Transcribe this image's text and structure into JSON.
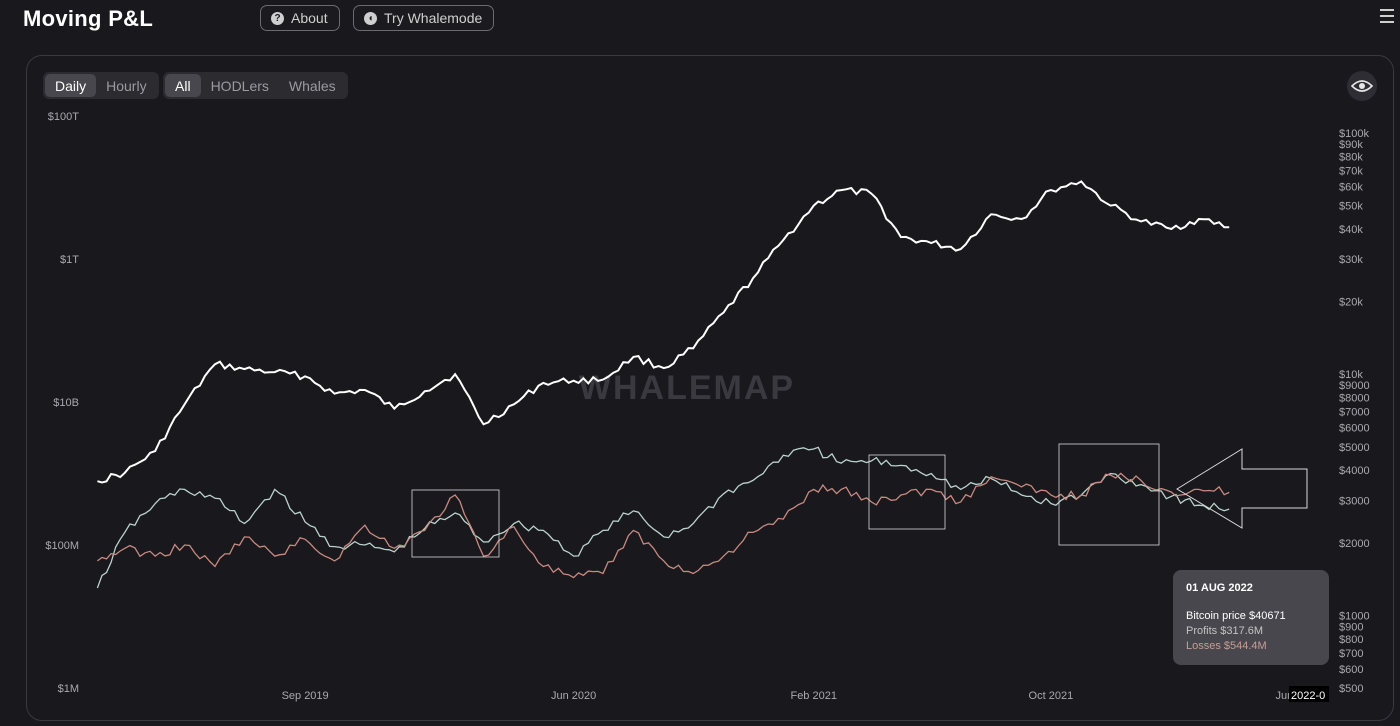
{
  "app": {
    "title": "Moving P&L"
  },
  "header": {
    "about_label": "About",
    "whalemode_label": "Try Whalemode",
    "about_icon": "question-circle-icon",
    "whalemode_icon": "whale-icon",
    "menu_icon": "hamburger-menu-icon"
  },
  "controls": {
    "interval": {
      "options": [
        "Daily",
        "Hourly"
      ],
      "selected": "Daily"
    },
    "cohort": {
      "options": [
        "All",
        "HODLers",
        "Whales"
      ],
      "selected": "All"
    },
    "eye_icon": "eye-icon"
  },
  "watermark": "WHALEMAP",
  "tooltip": {
    "date": "01 AUG 2022",
    "price": "Bitcoin price $40671",
    "profits": "Profits $317.6M",
    "losses": "Losses $544.4M"
  },
  "colors": {
    "price_line": "#ffffff",
    "profits_line": "#b9d3cc",
    "losses_line": "#c88a80",
    "annotation": "#d9d9d9",
    "background": "#19181d"
  },
  "chart_data": {
    "type": "line",
    "left_axis": {
      "scale": "log",
      "ticks": [
        "$100T",
        "$1T",
        "$10B",
        "$100M",
        "$1M"
      ]
    },
    "right_axis": {
      "scale": "log",
      "ticks": [
        "$100k",
        "$90k",
        "$80k",
        "$70k",
        "$60k",
        "$50k",
        "$40k",
        "$30k",
        "$20k",
        "$10k",
        "$9000",
        "$8000",
        "$7000",
        "$6000",
        "$5000",
        "$4000",
        "$3000",
        "$2000",
        "$1000",
        "$900",
        "$800",
        "$700",
        "$600",
        "$500"
      ]
    },
    "x_ticks": [
      "Sep 2019",
      "Jun 2020",
      "Feb 2021",
      "Oct 2021",
      "Jun 2",
      "2022-0"
    ],
    "series": [
      {
        "key": "price",
        "axis": "right",
        "x": [
          "2019-02",
          "2019-03",
          "2019-04",
          "2019-05",
          "2019-06",
          "2019-07",
          "2019-08",
          "2019-09",
          "2019-10",
          "2019-11",
          "2019-12",
          "2020-01",
          "2020-02",
          "2020-03",
          "2020-04",
          "2020-05",
          "2020-06",
          "2020-07",
          "2020-08",
          "2020-09",
          "2020-10",
          "2020-11",
          "2020-12",
          "2021-01",
          "2021-02",
          "2021-03",
          "2021-04",
          "2021-05",
          "2021-06",
          "2021-07",
          "2021-08",
          "2021-09",
          "2021-10",
          "2021-11",
          "2021-12",
          "2022-01",
          "2022-02",
          "2022-03",
          "2022-04"
        ],
        "values": [
          3600,
          3900,
          4800,
          7500,
          11000,
          10500,
          10200,
          9800,
          8300,
          8600,
          7200,
          8500,
          10000,
          6200,
          7500,
          9200,
          9400,
          9500,
          11800,
          10600,
          12800,
          18000,
          25000,
          36000,
          50000,
          58000,
          56000,
          37000,
          35000,
          33000,
          46000,
          44000,
          58000,
          63000,
          50000,
          43000,
          40000,
          44000,
          40671
        ]
      },
      {
        "key": "profits",
        "axis": "left",
        "name": "Profits",
        "x": [
          "2019-02",
          "2019-03",
          "2019-04",
          "2019-05",
          "2019-06",
          "2019-07",
          "2019-08",
          "2019-09",
          "2019-10",
          "2019-11",
          "2019-12",
          "2020-01",
          "2020-02",
          "2020-03",
          "2020-04",
          "2020-05",
          "2020-06",
          "2020-07",
          "2020-08",
          "2020-09",
          "2020-10",
          "2020-11",
          "2020-12",
          "2021-01",
          "2021-02",
          "2021-03",
          "2021-04",
          "2021-05",
          "2021-06",
          "2021-07",
          "2021-08",
          "2021-09",
          "2021-10",
          "2021-11",
          "2021-12",
          "2022-01",
          "2022-02",
          "2022-03",
          "2022-04"
        ],
        "values": [
          25,
          150,
          380,
          600,
          450,
          200,
          600,
          210,
          95,
          100,
          80,
          170,
          280,
          110,
          200,
          160,
          70,
          160,
          300,
          130,
          200,
          520,
          800,
          1800,
          2200,
          1400,
          1500,
          1300,
          1000,
          600,
          850,
          500,
          380,
          500,
          1000,
          700,
          480,
          360,
          317.6
        ]
      },
      {
        "key": "losses",
        "axis": "left",
        "name": "Losses",
        "x": [
          "2019-02",
          "2019-03",
          "2019-04",
          "2019-05",
          "2019-06",
          "2019-07",
          "2019-08",
          "2019-09",
          "2019-10",
          "2019-11",
          "2019-12",
          "2020-01",
          "2020-02",
          "2020-03",
          "2020-04",
          "2020-05",
          "2020-06",
          "2020-07",
          "2020-08",
          "2020-09",
          "2020-10",
          "2020-11",
          "2020-12",
          "2021-01",
          "2021-02",
          "2021-03",
          "2021-04",
          "2021-05",
          "2021-06",
          "2021-07",
          "2021-08",
          "2021-09",
          "2021-10",
          "2021-11",
          "2021-12",
          "2022-01",
          "2022-02",
          "2022-03",
          "2022-04"
        ],
        "values": [
          60,
          90,
          70,
          100,
          50,
          130,
          70,
          120,
          60,
          190,
          90,
          160,
          500,
          70,
          180,
          50,
          35,
          40,
          160,
          60,
          40,
          70,
          150,
          230,
          600,
          600,
          400,
          500,
          600,
          400,
          900,
          650,
          500,
          500,
          950,
          800,
          550,
          600,
          544.4
        ]
      }
    ]
  }
}
